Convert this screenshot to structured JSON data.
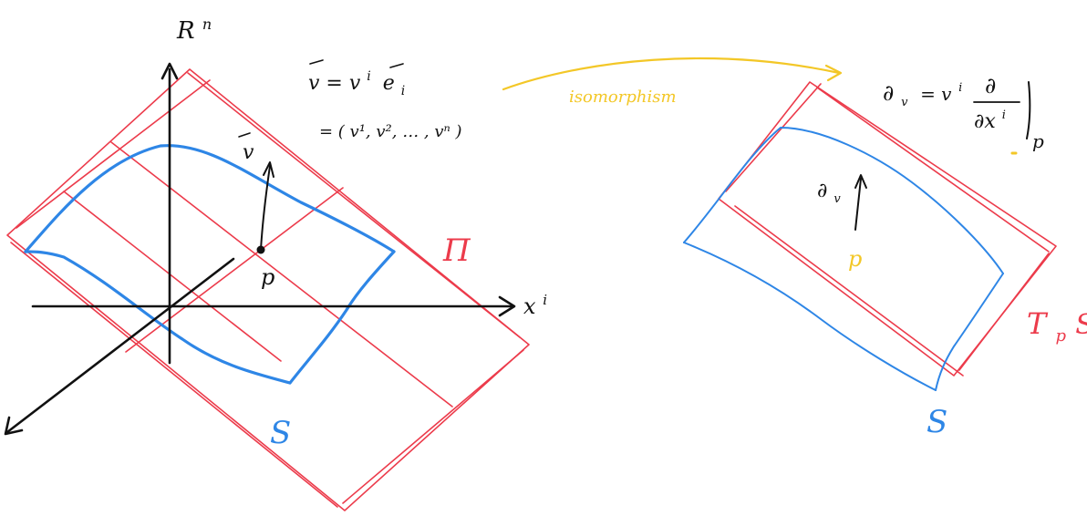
{
  "colors": {
    "ink": "#111111",
    "plane": "#ec3b4b",
    "surface": "#2e86e6",
    "isomorphism": "#f3c727"
  },
  "left_diagram": {
    "space_label": "R",
    "space_exponent": "n",
    "x_axis_label": "x",
    "x_axis_exponent": "i",
    "vector_label": "v",
    "point_label": "p",
    "plane_label": "Π",
    "surface_label": "S",
    "vector_formula": {
      "line1": "v = v",
      "line1_index": "i",
      "basis": "e",
      "basis_index": "i",
      "line2": "= ( v¹, v², … , vⁿ )"
    }
  },
  "isomorphism_label": "isomorphism",
  "right_diagram": {
    "tangent_vector_label": "∂",
    "tangent_vector_sub": "v",
    "point_label": "p",
    "plane_label": "T",
    "plane_label_sub": "p",
    "plane_label_tail": "S",
    "surface_label": "S",
    "formula": {
      "lhs": "∂",
      "lhs_sub": "v",
      "eq": "= v",
      "eq_index": "i",
      "numerator": "∂",
      "denominator": "∂x",
      "denominator_index": "i",
      "eval_at": "p"
    }
  }
}
